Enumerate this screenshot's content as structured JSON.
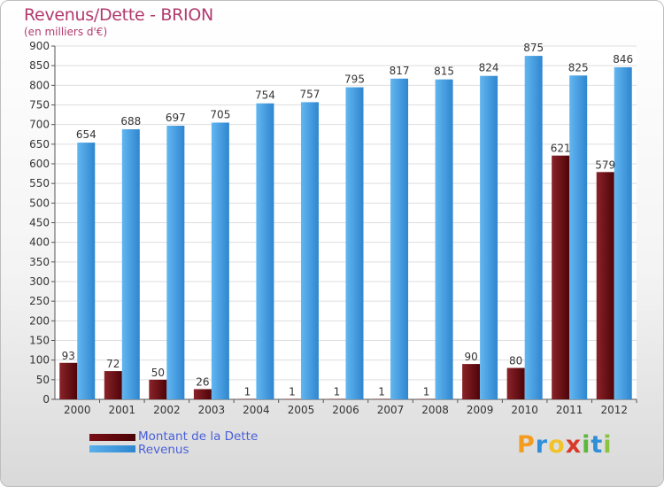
{
  "title": "Revenus/Dette - BRION",
  "subtitle": "(en milliers d'€)",
  "legend": {
    "debt_label": "Montant de la Dette",
    "revenue_label": "Revenus"
  },
  "logo": {
    "letters": [
      "P",
      "r",
      "o",
      "x",
      "i",
      "t",
      "i"
    ],
    "colors": [
      "#f39c1f",
      "#2f8fd8",
      "#f2c22a",
      "#d83a2a",
      "#5cb83a",
      "#2f8fd8",
      "#8ac43f"
    ]
  },
  "colors": {
    "debt": "#6b0a10",
    "revenue": "#4aa3e6",
    "title": "#b23a6e",
    "legend_text": "#4a5fd8"
  },
  "chart_data": {
    "type": "bar",
    "title": "Revenus/Dette - BRION",
    "subtitle": "(en milliers d'€)",
    "categories": [
      "2000",
      "2001",
      "2002",
      "2003",
      "2004",
      "2005",
      "2006",
      "2007",
      "2008",
      "2009",
      "2010",
      "2011",
      "2012"
    ],
    "series": [
      {
        "name": "Montant de la Dette",
        "values": [
          93,
          72,
          50,
          26,
          1,
          1,
          1,
          1,
          1,
          90,
          80,
          621,
          579
        ]
      },
      {
        "name": "Revenus",
        "values": [
          654,
          688,
          697,
          705,
          754,
          757,
          795,
          817,
          815,
          824,
          875,
          825,
          846
        ]
      }
    ],
    "ylim": [
      0,
      900
    ],
    "yticks": [
      0,
      50,
      100,
      150,
      200,
      250,
      300,
      350,
      400,
      450,
      500,
      550,
      600,
      650,
      700,
      750,
      800,
      850,
      900
    ],
    "grid": true,
    "legend_position": "bottom-left"
  }
}
